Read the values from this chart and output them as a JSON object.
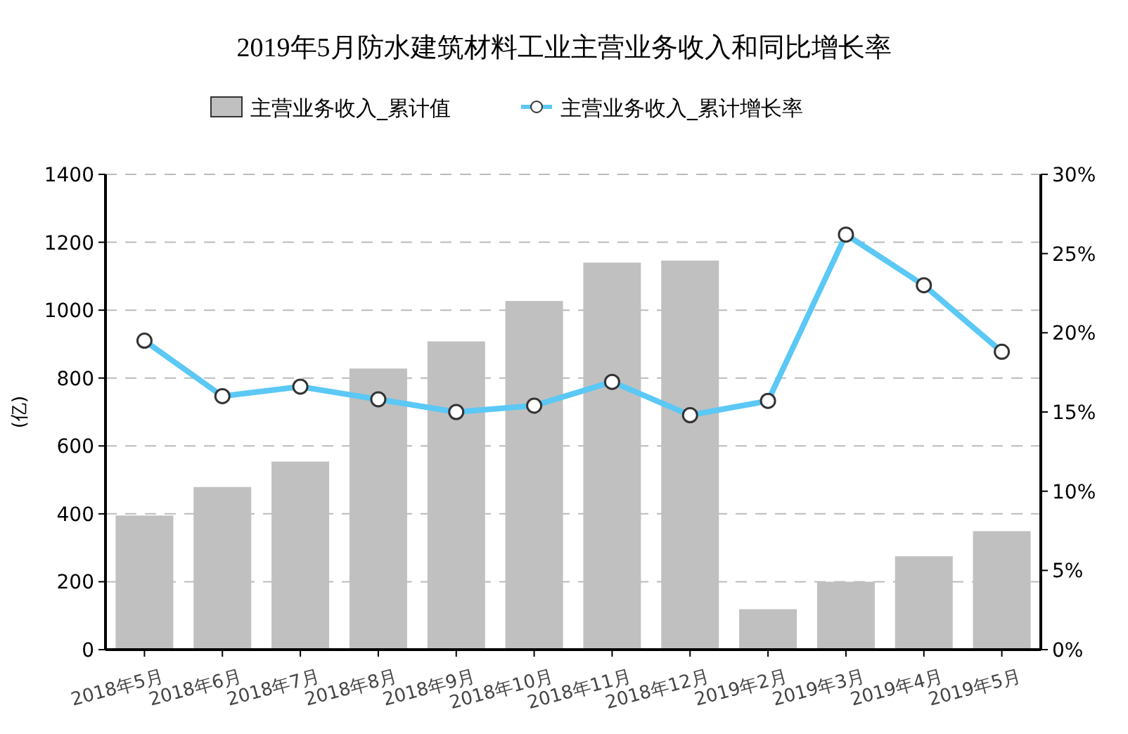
{
  "chart_data": {
    "type": "bar",
    "title": "2019年5月防水建筑材料工业主营业务收入和同比增长率",
    "ylabel": "(亿)",
    "categories": [
      "2018年5月",
      "2018年6月",
      "2018年7月",
      "2018年8月",
      "2018年9月",
      "2018年10月",
      "2018年11月",
      "2018年12月",
      "2019年2月",
      "2019年3月",
      "2019年4月",
      "2019年5月"
    ],
    "series": [
      {
        "name": "主营业务收入_累计值",
        "color": "#c0c0c0",
        "values": [
          395,
          479,
          554,
          828,
          908,
          1027,
          1140,
          1146,
          119,
          200,
          275,
          349
        ]
      },
      {
        "name": "主营业务收入_累计增长率",
        "type": "line",
        "axis": "y2",
        "color": "#5bc8f5",
        "marker": "circle",
        "values": [
          19.5,
          16.0,
          16.6,
          15.8,
          15.0,
          15.4,
          16.9,
          14.8,
          15.7,
          26.2,
          23.0,
          18.8
        ]
      }
    ],
    "ylim": [
      0,
      1400
    ],
    "yticks": [
      0,
      200,
      400,
      600,
      800,
      1000,
      1200,
      1400
    ],
    "y2lim": [
      0,
      30
    ],
    "y2ticks": [
      {
        "value": 0,
        "label": "0%"
      },
      {
        "value": 5,
        "label": "5%"
      },
      {
        "value": 10,
        "label": "10%"
      },
      {
        "value": 15,
        "label": "15%"
      },
      {
        "value": 20,
        "label": "20%"
      },
      {
        "value": 25,
        "label": "25%"
      },
      {
        "value": 30,
        "label": "30%"
      }
    ],
    "grid": "y",
    "legend": "top"
  }
}
